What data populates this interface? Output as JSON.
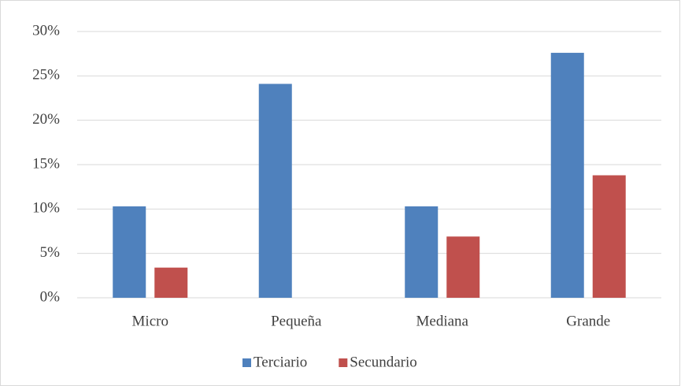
{
  "chart_data": {
    "type": "bar",
    "categories": [
      "Micro",
      "Pequeña",
      "Mediana",
      "Grande"
    ],
    "series": [
      {
        "name": "Terciario",
        "color": "#4f81bd",
        "values": [
          10.3,
          24.1,
          10.3,
          27.6
        ]
      },
      {
        "name": "Secundario",
        "color": "#c0504d",
        "values": [
          3.4,
          0,
          6.9,
          13.8
        ]
      }
    ],
    "ylim": [
      0,
      30
    ],
    "yticks": [
      {
        "value": 0,
        "label": "0%"
      },
      {
        "value": 5,
        "label": "5%"
      },
      {
        "value": 10,
        "label": "10%"
      },
      {
        "value": 15,
        "label": "15%"
      },
      {
        "value": 20,
        "label": "20%"
      },
      {
        "value": 25,
        "label": "25%"
      },
      {
        "value": 30,
        "label": "30%"
      }
    ],
    "grid": true,
    "legend": "bottom"
  }
}
